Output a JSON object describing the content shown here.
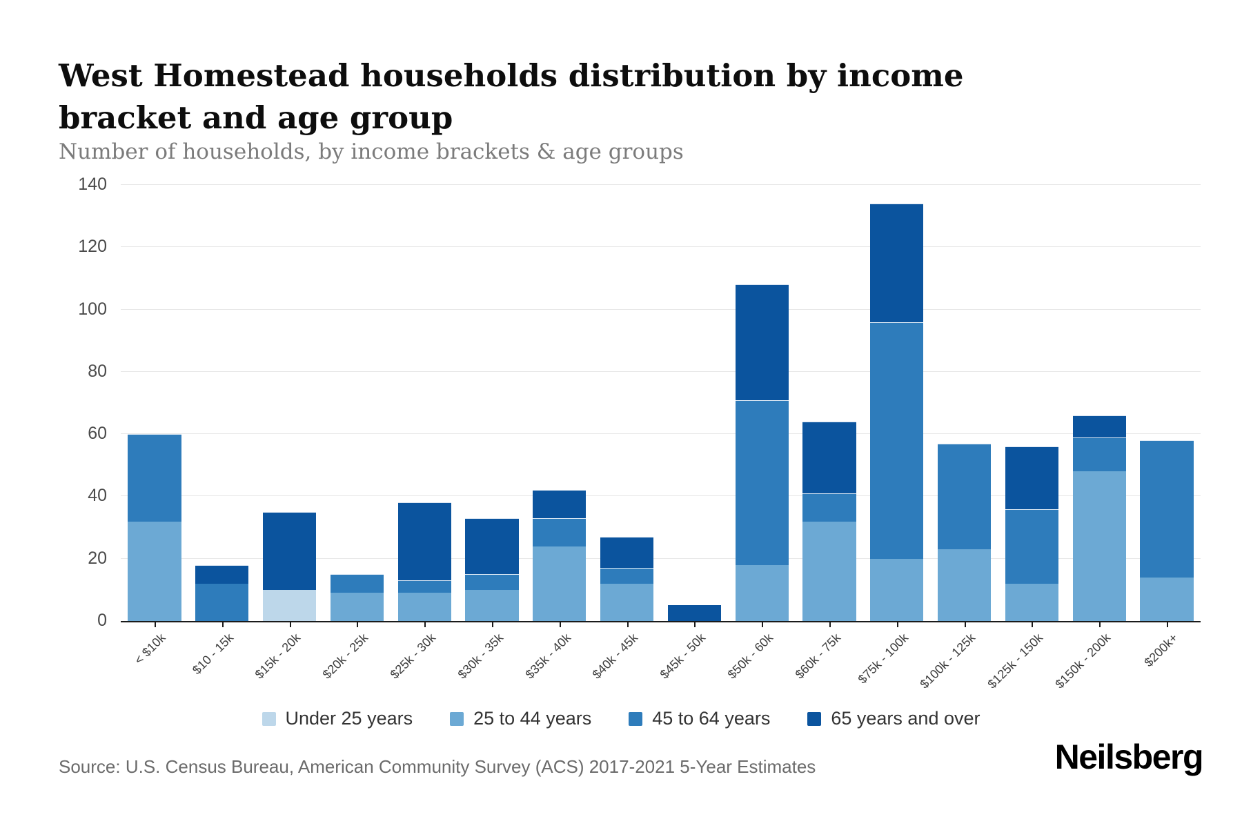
{
  "header": {
    "title": "West Homestead households distribution by income bracket and age group",
    "subtitle": "Number of households, by income brackets & age groups"
  },
  "footer": {
    "source": "Source: U.S. Census Bureau, American Community Survey (ACS) 2017-2021 5-Year Estimates",
    "brand": "Neilsberg"
  },
  "chart_data": {
    "type": "bar",
    "stacked": true,
    "title": "West Homestead households distribution by income bracket and age group",
    "subtitle": "Number of households, by income brackets & age groups",
    "xlabel": "",
    "ylabel": "Number of households",
    "ylim": [
      0,
      140
    ],
    "ytick_interval": 20,
    "grid": true,
    "legend_position": "bottom",
    "categories": [
      "< $10k",
      "$10 - 15k",
      "$15k - 20k",
      "$20k - 25k",
      "$25k - 30k",
      "$30k - 35k",
      "$35k - 40k",
      "$40k - 45k",
      "$45k - 50k",
      "$50k - 60k",
      "$60k - 75k",
      "$75k - 100k",
      "$100k - 125k",
      "$125k - 150k",
      "$150k - 200k",
      "$200k+"
    ],
    "series": [
      {
        "name": "Under 25 years",
        "color": "#BDD7EA",
        "values": [
          0,
          0,
          10,
          0,
          0,
          0,
          0,
          0,
          0,
          0,
          0,
          0,
          0,
          0,
          0,
          0
        ]
      },
      {
        "name": "25 to 44 years",
        "color": "#6CA9D4",
        "values": [
          32,
          0,
          0,
          9,
          9,
          10,
          24,
          12,
          0,
          18,
          32,
          20,
          23,
          12,
          48,
          14
        ]
      },
      {
        "name": "45 to 64 years",
        "color": "#2E7CBB",
        "values": [
          28,
          12,
          0,
          6,
          4,
          5,
          9,
          5,
          0,
          53,
          9,
          76,
          34,
          24,
          11,
          44
        ]
      },
      {
        "name": "65 years and over",
        "color": "#0B549E",
        "values": [
          0,
          6,
          25,
          0,
          25,
          18,
          9,
          10,
          5,
          37,
          23,
          38,
          0,
          20,
          7,
          0
        ]
      }
    ],
    "totals": [
      60,
      18,
      35,
      15,
      38,
      33,
      42,
      27,
      5,
      108,
      64,
      134,
      57,
      56,
      66,
      58
    ]
  }
}
